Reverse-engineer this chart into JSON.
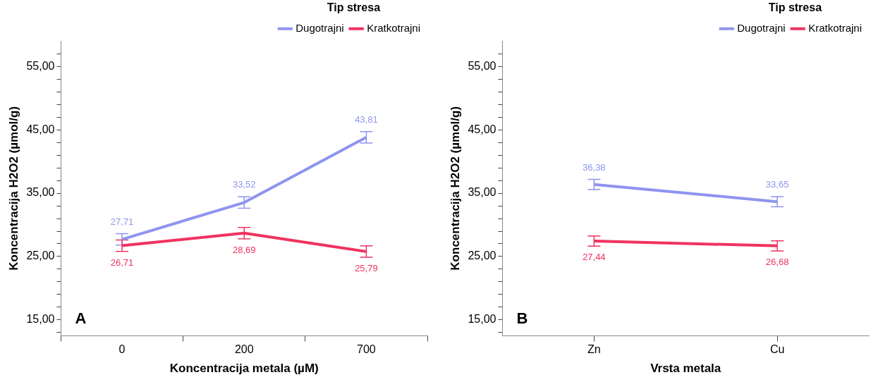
{
  "chart_data": [
    {
      "type": "line",
      "xlabel": "Koncentracija metala (µM)",
      "ylabel": "Koncentracija H2O2 (µmol/g)",
      "legend_title": "Tip stresa",
      "legend": "top right",
      "grid": false,
      "annotations": [
        "A"
      ],
      "categories": [
        "0",
        "200",
        "700"
      ],
      "ylim": [
        12.5,
        59
      ],
      "yticks": [
        {
          "value": 13,
          "label": null
        },
        {
          "value": 15,
          "label": "15,00"
        },
        {
          "value": 17,
          "label": null
        },
        {
          "value": 19,
          "label": null
        },
        {
          "value": 21,
          "label": null
        },
        {
          "value": 23,
          "label": null
        },
        {
          "value": 25,
          "label": "25,00"
        },
        {
          "value": 27,
          "label": null
        },
        {
          "value": 29,
          "label": null
        },
        {
          "value": 31,
          "label": null
        },
        {
          "value": 33,
          "label": null
        },
        {
          "value": 35,
          "label": "35,00"
        },
        {
          "value": 37,
          "label": null
        },
        {
          "value": 39,
          "label": null
        },
        {
          "value": 41,
          "label": null
        },
        {
          "value": 43,
          "label": null
        },
        {
          "value": 45,
          "label": "45,00"
        },
        {
          "value": 47,
          "label": null
        },
        {
          "value": 49,
          "label": null
        },
        {
          "value": 51,
          "label": null
        },
        {
          "value": 53,
          "label": null
        },
        {
          "value": 55,
          "label": "55,00"
        },
        {
          "value": 57,
          "label": null
        }
      ],
      "series": [
        {
          "name": "Dugotrajni",
          "color": "#8f94f0",
          "values": [
            27.71,
            33.52,
            43.81
          ],
          "errors": [
            0.9,
            0.9,
            0.9
          ],
          "value_labels": [
            "27,71",
            "33,52",
            "43,81"
          ]
        },
        {
          "name": "Kratkotrajni",
          "color": "#f0325f",
          "values": [
            26.71,
            28.69,
            25.79
          ],
          "errors": [
            0.9,
            0.9,
            0.9
          ],
          "value_labels": [
            "26,71",
            "28,69",
            "25,79"
          ]
        }
      ]
    },
    {
      "type": "line",
      "xlabel": "Vrsta metala",
      "ylabel": "Koncentracija H2O2 (µmol/g)",
      "legend_title": "Tip stresa",
      "legend": "top right",
      "grid": false,
      "annotations": [
        "B"
      ],
      "categories": [
        "Zn",
        "Cu"
      ],
      "ylim": [
        12.5,
        59
      ],
      "yticks": [
        {
          "value": 13,
          "label": null
        },
        {
          "value": 15,
          "label": "15,00"
        },
        {
          "value": 17,
          "label": null
        },
        {
          "value": 19,
          "label": null
        },
        {
          "value": 21,
          "label": null
        },
        {
          "value": 23,
          "label": null
        },
        {
          "value": 25,
          "label": "25,00"
        },
        {
          "value": 27,
          "label": null
        },
        {
          "value": 29,
          "label": null
        },
        {
          "value": 31,
          "label": null
        },
        {
          "value": 33,
          "label": null
        },
        {
          "value": 35,
          "label": "35,00"
        },
        {
          "value": 37,
          "label": null
        },
        {
          "value": 39,
          "label": null
        },
        {
          "value": 41,
          "label": null
        },
        {
          "value": 43,
          "label": null
        },
        {
          "value": 45,
          "label": "45,00"
        },
        {
          "value": 47,
          "label": null
        },
        {
          "value": 49,
          "label": null
        },
        {
          "value": 51,
          "label": null
        },
        {
          "value": 53,
          "label": null
        },
        {
          "value": 55,
          "label": "55,00"
        },
        {
          "value": 57,
          "label": null
        }
      ],
      "series": [
        {
          "name": "Dugotrajni",
          "color": "#8f94f0",
          "values": [
            36.38,
            33.65
          ],
          "errors": [
            0.8,
            0.8
          ],
          "value_labels": [
            "36,38",
            "33,65"
          ]
        },
        {
          "name": "Kratkotrajni",
          "color": "#f0325f",
          "values": [
            27.44,
            26.68
          ],
          "errors": [
            0.8,
            0.8
          ],
          "value_labels": [
            "27,44",
            "26,68"
          ]
        }
      ]
    }
  ]
}
